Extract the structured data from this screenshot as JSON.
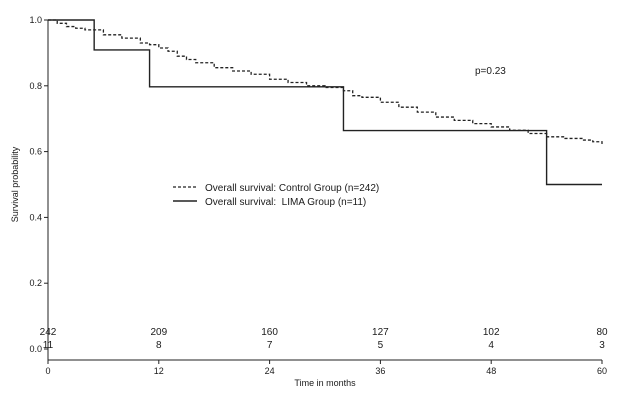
{
  "chart_data": {
    "type": "line",
    "title": "",
    "xlabel": "Time in months",
    "ylabel": "Survival probability",
    "xlim": [
      0,
      60
    ],
    "ylim": [
      0,
      1
    ],
    "x_ticks": [
      0,
      12,
      24,
      36,
      48,
      60
    ],
    "x_tick_labels": [
      "0",
      "12",
      "24",
      "36",
      "48",
      "60"
    ],
    "y_ticks": [
      0,
      0.2,
      0.4,
      0.6,
      0.8,
      1
    ],
    "y_tick_labels": [
      "0.0",
      "0.2",
      "0.4",
      "0.6",
      "0.8",
      "1.0"
    ],
    "grid": false,
    "legend_position": "center-left",
    "annotation": "p=0.23",
    "series": [
      {
        "name": "Overall survival: Control Group (n=242)",
        "line_style": "dashed",
        "color": "#222222",
        "x": [
          0,
          1,
          2,
          3,
          4,
          6,
          8,
          10,
          11,
          12,
          13,
          14,
          15,
          16,
          18,
          20,
          22,
          24,
          26,
          28,
          30,
          32,
          33,
          34,
          36,
          38,
          40,
          42,
          44,
          46,
          48,
          50,
          52,
          54,
          56,
          58,
          59,
          60
        ],
        "y": [
          1.0,
          0.99,
          0.98,
          0.975,
          0.97,
          0.955,
          0.945,
          0.93,
          0.925,
          0.915,
          0.905,
          0.89,
          0.88,
          0.87,
          0.855,
          0.845,
          0.835,
          0.82,
          0.81,
          0.8,
          0.795,
          0.785,
          0.77,
          0.765,
          0.75,
          0.735,
          0.72,
          0.705,
          0.695,
          0.685,
          0.675,
          0.665,
          0.655,
          0.645,
          0.64,
          0.635,
          0.63,
          0.62
        ]
      },
      {
        "name": "Overall survival:  LIMA Group (n=11)",
        "line_style": "solid",
        "color": "#222222",
        "x": [
          0,
          5,
          5,
          11,
          11,
          32,
          32,
          54,
          54,
          60
        ],
        "y": [
          1.0,
          1.0,
          0.909,
          0.909,
          0.797,
          0.797,
          0.664,
          0.664,
          0.5,
          0.5
        ]
      }
    ],
    "numbers_at_risk": {
      "times": [
        0,
        12,
        24,
        36,
        48,
        60
      ],
      "control": [
        "242",
        "209",
        "160",
        "127",
        "102",
        "80"
      ],
      "lima": [
        "11",
        "8",
        "7",
        "5",
        "4",
        "3"
      ]
    }
  }
}
